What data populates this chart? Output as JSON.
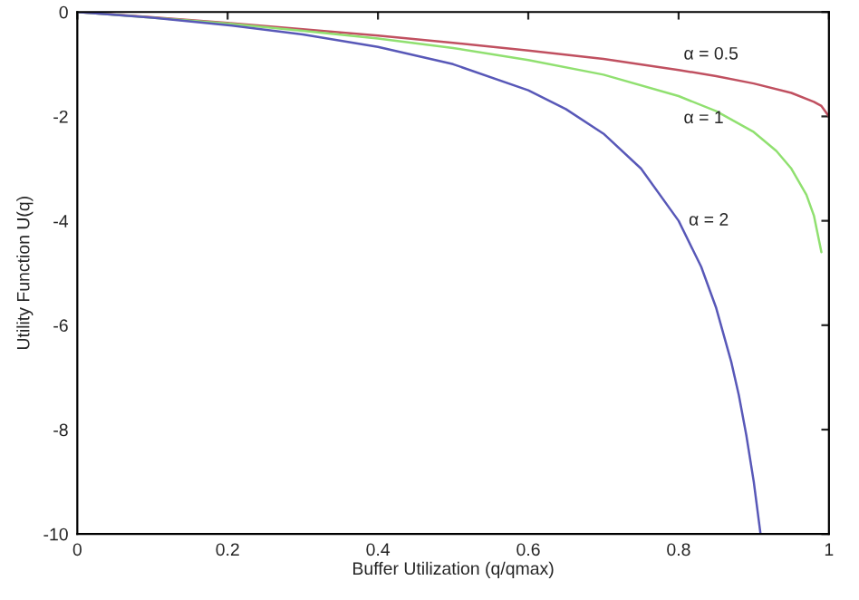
{
  "chart_data": {
    "type": "line",
    "xlabel": "Buffer Utilization (q/qmax)",
    "ylabel": "Utility Function U(q)",
    "xlim": [
      0,
      1
    ],
    "ylim": [
      -10,
      0
    ],
    "xticks": [
      0,
      0.2,
      0.4,
      0.6,
      0.8,
      1
    ],
    "yticks": [
      -10,
      -8,
      -6,
      -4,
      -2,
      0
    ],
    "grid": false,
    "legend": false,
    "series": [
      {
        "name": "α = 0.5",
        "color": "#c05060",
        "x": [
          0,
          0.1,
          0.2,
          0.3,
          0.4,
          0.5,
          0.6,
          0.7,
          0.8,
          0.85,
          0.9,
          0.95,
          0.98,
          0.99,
          1
        ],
        "values": [
          0,
          -0.1,
          -0.21,
          -0.33,
          -0.45,
          -0.59,
          -0.74,
          -0.9,
          -1.11,
          -1.23,
          -1.37,
          -1.55,
          -1.72,
          -1.8,
          -2
        ]
      },
      {
        "name": "α = 1",
        "color": "#90e070",
        "x": [
          0,
          0.1,
          0.2,
          0.3,
          0.4,
          0.5,
          0.6,
          0.7,
          0.8,
          0.85,
          0.9,
          0.93,
          0.95,
          0.97,
          0.98,
          0.99
        ],
        "values": [
          0,
          -0.11,
          -0.22,
          -0.36,
          -0.51,
          -0.69,
          -0.92,
          -1.2,
          -1.61,
          -1.9,
          -2.3,
          -2.66,
          -3.0,
          -3.5,
          -3.9,
          -4.6
        ]
      },
      {
        "name": "α = 2",
        "color": "#5858b8",
        "x": [
          0,
          0.1,
          0.2,
          0.3,
          0.4,
          0.5,
          0.6,
          0.65,
          0.7,
          0.75,
          0.8,
          0.83,
          0.85,
          0.87,
          0.88,
          0.89,
          0.9,
          0.909
        ],
        "values": [
          0,
          -0.11,
          -0.25,
          -0.43,
          -0.67,
          -1.0,
          -1.5,
          -1.86,
          -2.33,
          -3.0,
          -4.0,
          -4.88,
          -5.67,
          -6.7,
          -7.33,
          -8.1,
          -9.0,
          -10.0
        ]
      }
    ]
  }
}
